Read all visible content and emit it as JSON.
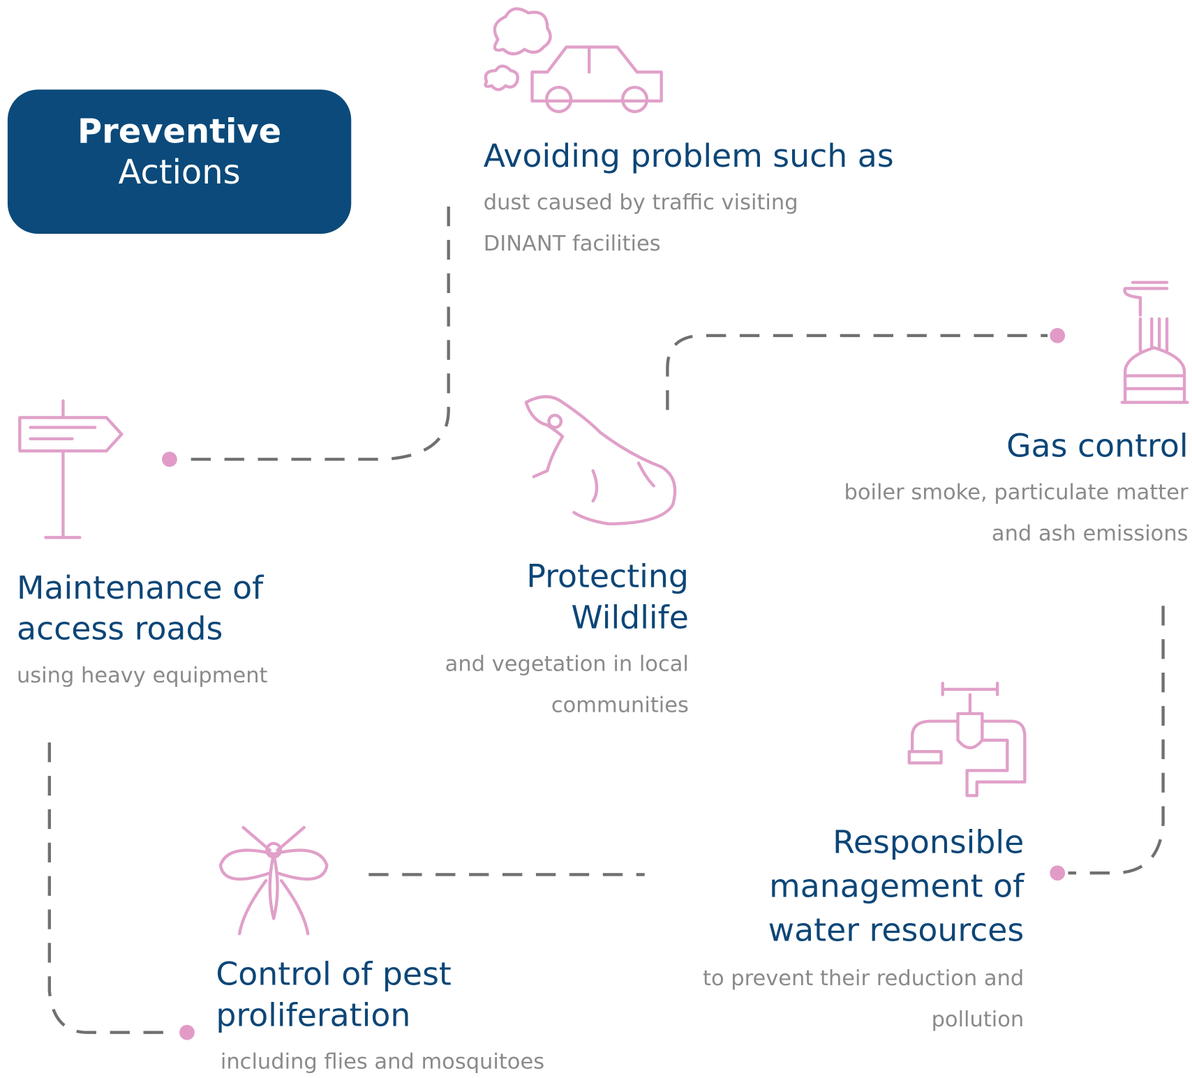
{
  "title": {
    "lines": [
      "Preventive",
      "Actions"
    ]
  },
  "actions": [
    {
      "heading": [
        "Avoiding problem such as"
      ],
      "description": [
        "dust caused by traffic visiting",
        "DINANT facilities"
      ]
    },
    {
      "heading": [
        "Gas control"
      ],
      "description": [
        "boiler smoke, particulate matter",
        "and ash emissions"
      ]
    },
    {
      "heading": [
        "Maintenance of",
        "access roads"
      ],
      "description": [
        "using heavy equipment"
      ]
    },
    {
      "heading": [
        "Protecting",
        "Wildlife"
      ],
      "description": [
        "and vegetation in local",
        "communities"
      ]
    },
    {
      "heading": [
        "Responsible",
        "management of",
        "water resources"
      ],
      "description": [
        "to prevent their reduction and",
        "pollution"
      ]
    },
    {
      "heading": [
        "Control of pest",
        "proliferation"
      ],
      "description": [
        "including flies and mosquitoes"
      ]
    }
  ]
}
